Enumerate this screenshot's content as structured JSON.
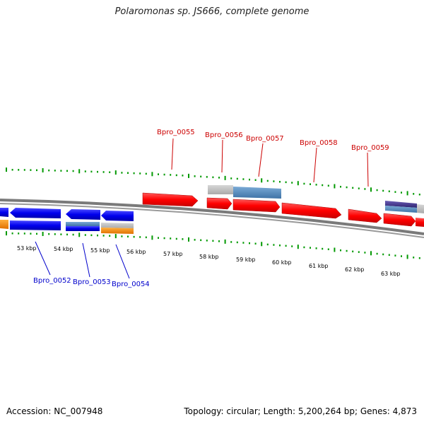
{
  "title": "Polaromonas sp. JS666, complete genome",
  "footer": {
    "accession": "Accession: NC_007948",
    "summary": "Topology: circular; Length: 5,200,264 bp; Genes: 4,873"
  },
  "map": {
    "kbp_ticks": [
      "53 kbp",
      "54 kbp",
      "55 kbp",
      "56 kbp",
      "57 kbp",
      "58 kbp",
      "59 kbp",
      "60 kbp",
      "61 kbp",
      "62 kbp",
      "63 kbp"
    ],
    "gene_labels_top": [
      "Bpro_0055",
      "Bpro_0056",
      "Bpro_0057",
      "Bpro_0058",
      "Bpro_0059"
    ],
    "gene_labels_bottom": [
      "Bpro_0052",
      "Bpro_0053",
      "Bpro_0054"
    ],
    "colors": {
      "forward": "#ff0000",
      "reverse": "#0000ee",
      "steel": "#4f86b8",
      "grey": "#bdbdbd",
      "orange": "#ff8c00",
      "purple": "#4a3b8f",
      "gc_skew": "#009900",
      "red_label": "#cc0000",
      "blue_label": "#0000cc"
    }
  }
}
